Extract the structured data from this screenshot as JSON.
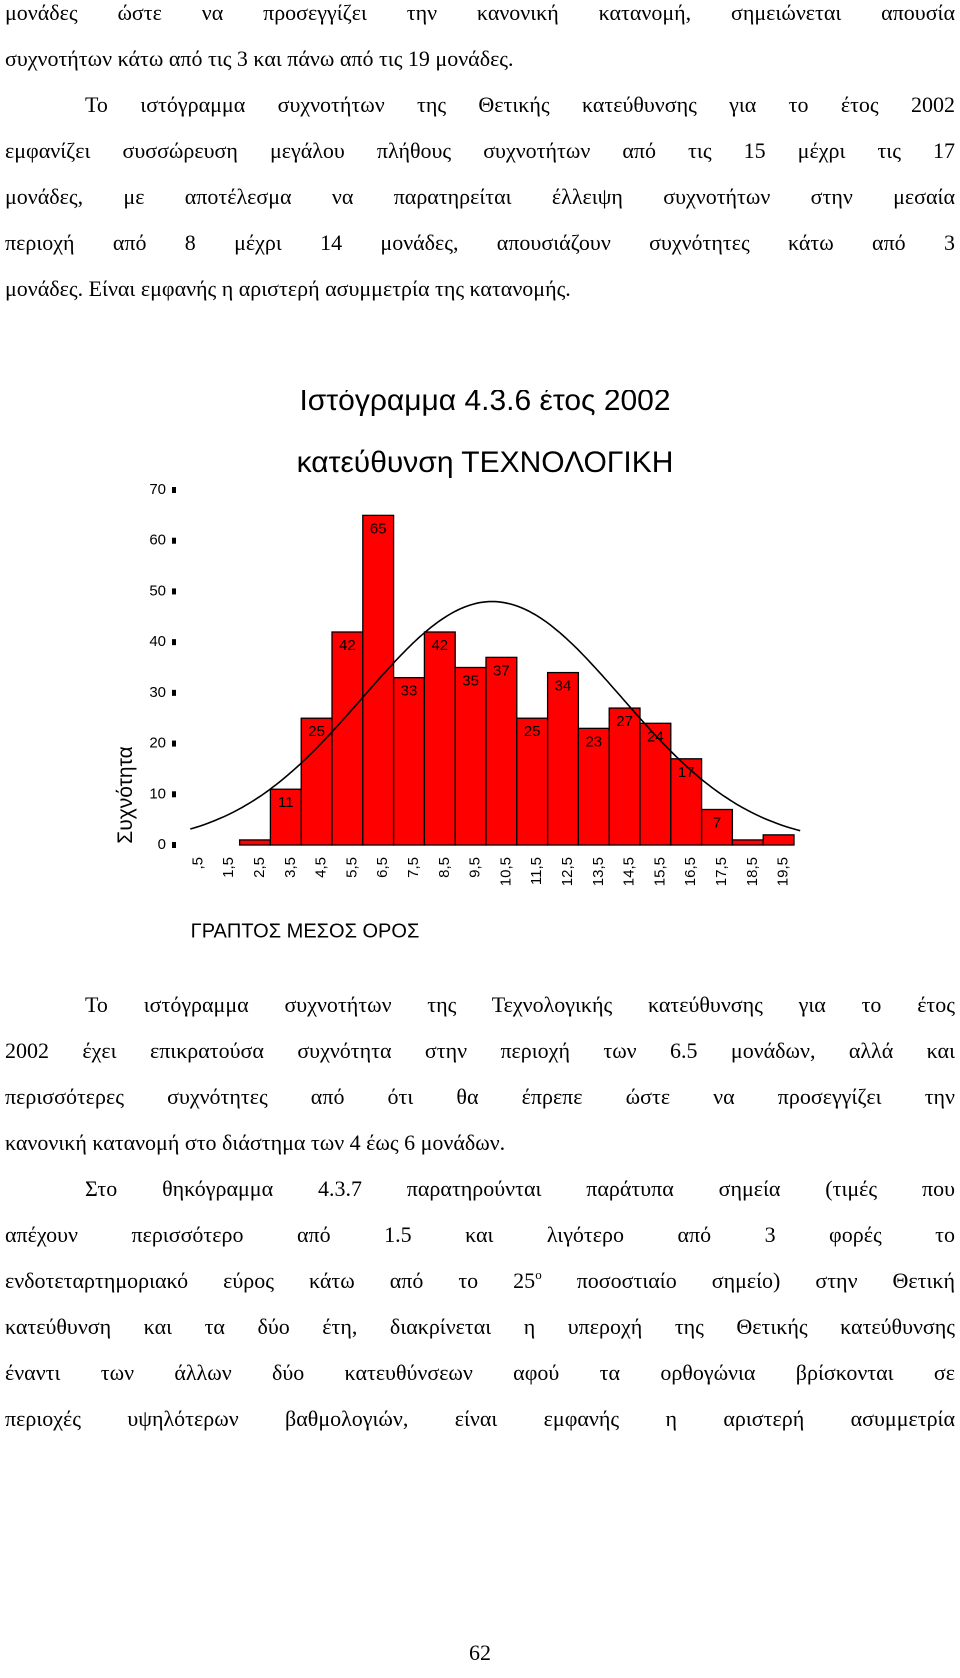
{
  "top_text": {
    "lines": [
      "μονάδες ώστε να προσεγγίζει την κανονική κατανομή, σημειώνεται απουσία",
      "συχνοτήτων κάτω από τις 3 και πάνω από τις 19 μονάδες.",
      "Το ιστόγραμμα συχνοτήτων της Θετικής κατεύθυνσης για το έτος 2002",
      "εμφανίζει συσσώρευση μεγάλου πλήθους συχνοτήτων από τις 15 μέχρι τις 17",
      "μονάδες, με αποτέλεσμα να παρατηρείται έλλειψη συχνοτήτων στην μεσαία",
      "περιοχή από 8 μέχρι 14 μονάδες, απουσιάζουν συχνότητες κάτω από 3",
      "μονάδες. Είναι εμφανής η αριστερή ασυμμετρία της κατανομής."
    ]
  },
  "chart_data": {
    "type": "bar",
    "title": "Ιστόγραμμα 4.3.6 έτος 2002",
    "subtitle": "κατεύθυνση ΤΕΧΝΟΛΟΓΙΚΗ",
    "xlabel": "ΓΡΑΠΤΟΣ ΜΕΣΟΣ ΟΡΟΣ",
    "ylabel": "Συχνότητα",
    "categories": [
      ",5",
      "1,5",
      "2,5",
      "3,5",
      "4,5",
      "5,5",
      "6,5",
      "7,5",
      "8,5",
      "9,5",
      "10,5",
      "11,5",
      "12,5",
      "13,5",
      "14,5",
      "15,5",
      "16,5",
      "17,5",
      "18,5",
      "19,5"
    ],
    "values": [
      0,
      0,
      1,
      11,
      25,
      42,
      65,
      33,
      42,
      35,
      37,
      25,
      34,
      23,
      27,
      24,
      17,
      7,
      1,
      2
    ],
    "data_labels": [
      "",
      "",
      "",
      "11",
      "25",
      "42",
      "65",
      "33",
      "42",
      "35",
      "37",
      "25",
      "34",
      "23",
      "27",
      "24",
      "17",
      "7",
      "",
      ""
    ],
    "yticks": [
      0,
      10,
      20,
      30,
      40,
      50,
      60,
      70
    ],
    "ylim": [
      0,
      70
    ],
    "normal_curve": {
      "mean": 9.7,
      "sd": 4.2,
      "peak": 48
    },
    "grid": false,
    "colors": {
      "bar_fill": "#ff0000",
      "bar_stroke": "#000000",
      "curve": "#000000"
    }
  },
  "bottom_text": {
    "p1": [
      "Το ιστόγραμμα συχνοτήτων της Τεχνολογικής κατεύθυνσης για το έτος",
      "2002 έχει επικρατούσα συχνότητα στην περιοχή των 6.5 μονάδων, αλλά και",
      "περισσότερες  συχνότητες από ότι θα έπρεπε ώστε να προσεγγίζει την",
      "κανονική κατανομή στο διάστημα των 4 έως 6 μονάδων."
    ],
    "p2_line1": "Στο θηκόγραμμα 4.3.7 παρατηρούνται παράτυπα σημεία (τιμές που",
    "p2_line2": "απέχουν περισσότερο από 1.5 και λιγότερο από 3 φορές το",
    "p2_line3_before": "ενδοτεταρτημοριακό εύρος κάτω από το 25",
    "p2_line3_sup": "ο",
    "p2_line3_after": " ποσοστιαίο σημείο) στην Θετική",
    "p2_rest": [
      "κατεύθυνση και τα δύο έτη, διακρίνεται η υπεροχή της Θετικής κατεύθυνσης",
      "έναντι των άλλων δύο κατευθύνσεων αφού τα ορθογώνια βρίσκονται σε",
      "περιοχές υψηλότερων βαθμολογιών, είναι εμφανής η αριστερή ασυμμετρία"
    ]
  },
  "page_number": "62"
}
